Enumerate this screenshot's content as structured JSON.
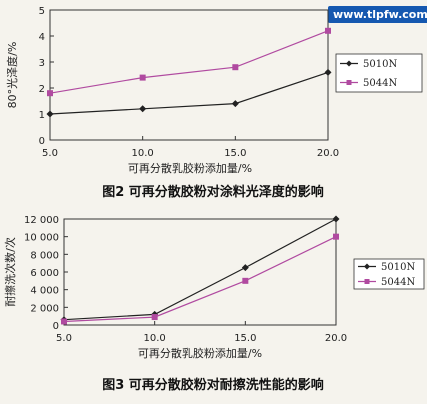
{
  "watermark": "www.tlpfw.com",
  "chart_data": [
    {
      "type": "line",
      "title": "图2 可再分散胶粉对涂料光泽度的影响",
      "xlabel": "可再分散乳胶粉添加量/%",
      "ylabel": "80°光泽度/%",
      "x": [
        5.0,
        10.0,
        15.0,
        20.0
      ],
      "x_ticks": [
        "5.0",
        "10.0",
        "15.0",
        "20.0"
      ],
      "y_ticks": [
        "0",
        "1",
        "2",
        "3",
        "4",
        "5"
      ],
      "xlim": [
        5.0,
        20.0
      ],
      "ylim": [
        0,
        5
      ],
      "legend_position": "right",
      "series": [
        {
          "name": "5010N",
          "values": [
            1.0,
            1.2,
            1.4,
            2.6
          ],
          "color": "#222222",
          "marker": "diamond"
        },
        {
          "name": "5044N",
          "values": [
            1.8,
            2.4,
            2.8,
            4.2
          ],
          "color": "#b04aa0",
          "marker": "square"
        }
      ]
    },
    {
      "type": "line",
      "title": "图3 可再分散胶粉对耐擦洗性能的影响",
      "xlabel": "可再分散乳胶粉添加量/%",
      "ylabel": "耐擦洗次数/次",
      "x": [
        5.0,
        10.0,
        15.0,
        20.0
      ],
      "x_ticks": [
        "5.0",
        "10.0",
        "15.0",
        "20.0"
      ],
      "y_ticks": [
        "0",
        "2 000",
        "4 000",
        "6 000",
        "8 000",
        "10 000",
        "12 000"
      ],
      "xlim": [
        5.0,
        20.0
      ],
      "ylim": [
        0,
        12000
      ],
      "legend_position": "right",
      "series": [
        {
          "name": "5010N",
          "values": [
            600,
            1200,
            6500,
            12000
          ],
          "color": "#222222",
          "marker": "diamond"
        },
        {
          "name": "5044N",
          "values": [
            400,
            900,
            5000,
            10000
          ],
          "color": "#b04aa0",
          "marker": "square"
        }
      ]
    }
  ]
}
